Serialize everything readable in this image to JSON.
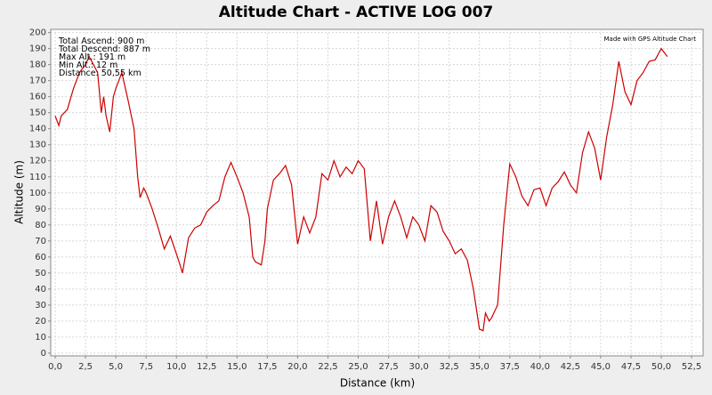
{
  "chart_data": {
    "type": "line",
    "title": "Altitude Chart - ACTIVE LOG 007",
    "x_label": "Distance (km)",
    "y_label": "Altitude (m)",
    "annotations": [
      "Total Ascend: 900 m",
      "Total Descend: 887 m",
      "Max Alt.: 191 m",
      "Min Alt.: 12 m",
      "Distance: 50,55 km"
    ],
    "credit": "Made with GPS Altitude Chart",
    "grid": true,
    "xlim": [
      -0.37,
      53.45
    ],
    "ylim": [
      -1.7,
      202
    ],
    "xticks": [
      {
        "value": 0,
        "label": "0,0"
      },
      {
        "value": 2.5,
        "label": "2,5"
      },
      {
        "value": 5,
        "label": "5,0"
      },
      {
        "value": 7.5,
        "label": "7,5"
      },
      {
        "value": 10,
        "label": "10,0"
      },
      {
        "value": 12.5,
        "label": "12,5"
      },
      {
        "value": 15,
        "label": "15,0"
      },
      {
        "value": 17.5,
        "label": "17,5"
      },
      {
        "value": 20,
        "label": "20,0"
      },
      {
        "value": 22.5,
        "label": "22,5"
      },
      {
        "value": 25,
        "label": "25,0"
      },
      {
        "value": 27.5,
        "label": "27,5"
      },
      {
        "value": 30,
        "label": "30,0"
      },
      {
        "value": 32.5,
        "label": "32,5"
      },
      {
        "value": 35,
        "label": "35,0"
      },
      {
        "value": 37.5,
        "label": "37,5"
      },
      {
        "value": 40,
        "label": "40,0"
      },
      {
        "value": 42.5,
        "label": "42,5"
      },
      {
        "value": 45,
        "label": "45,0"
      },
      {
        "value": 47.5,
        "label": "47,5"
      },
      {
        "value": 50,
        "label": "50,0"
      },
      {
        "value": 52.5,
        "label": "52,5"
      }
    ],
    "yticks": [
      0,
      10,
      20,
      30,
      40,
      50,
      60,
      70,
      80,
      90,
      100,
      110,
      120,
      130,
      140,
      150,
      160,
      170,
      180,
      190,
      200
    ],
    "x": [
      0,
      0.3,
      0.5,
      1,
      1.5,
      2,
      2.5,
      2.8,
      3.5,
      3.8,
      4,
      4.2,
      4.5,
      4.8,
      5,
      5.5,
      6,
      6.5,
      6.8,
      7,
      7.3,
      7.5,
      8,
      8.5,
      9,
      9.5,
      10,
      10.3,
      10.5,
      11,
      11.5,
      12,
      12.5,
      13,
      13.5,
      14,
      14.5,
      15,
      15.5,
      16,
      16.3,
      16.5,
      17,
      17.3,
      17.5,
      18,
      18.5,
      19,
      19.5,
      20,
      20.5,
      21,
      21.5,
      22,
      22.5,
      23,
      23.5,
      24,
      24.5,
      25,
      25.5,
      26,
      26.5,
      27,
      27.5,
      28,
      28.5,
      29,
      29.5,
      30,
      30.5,
      31,
      31.5,
      32,
      32.5,
      33,
      33.5,
      34,
      34.5,
      35,
      35.3,
      35.5,
      35.8,
      36,
      36.5,
      37,
      37.5,
      38,
      38.5,
      39,
      39.5,
      40,
      40.5,
      41,
      41.5,
      42,
      42.5,
      43,
      43.5,
      44,
      44.5,
      45,
      45.5,
      46,
      46.5,
      47,
      47.5,
      48,
      48.5,
      49,
      49.5,
      50,
      50.5
    ],
    "series": [
      {
        "name": "Altitude",
        "color": "#cc0000",
        "values": [
          148,
          142,
          148,
          152,
          165,
          175,
          180,
          185,
          175,
          150,
          160,
          148,
          138,
          160,
          165,
          175,
          158,
          140,
          110,
          97,
          103,
          100,
          90,
          78,
          65,
          73,
          62,
          55,
          50,
          72,
          78,
          80,
          88,
          92,
          95,
          110,
          119,
          110,
          100,
          85,
          60,
          57,
          55,
          70,
          90,
          108,
          112,
          117,
          105,
          68,
          85,
          75,
          85,
          112,
          108,
          120,
          110,
          116,
          112,
          120,
          115,
          70,
          95,
          68,
          85,
          95,
          85,
          72,
          85,
          80,
          70,
          92,
          88,
          76,
          70,
          62,
          65,
          58,
          40,
          15,
          14,
          25,
          20,
          22,
          30,
          80,
          118,
          110,
          98,
          92,
          102,
          103,
          92,
          103,
          107,
          113,
          105,
          100,
          125,
          138,
          128,
          108,
          135,
          155,
          182,
          163,
          155,
          170,
          175,
          182,
          183,
          190,
          185
        ]
      }
    ]
  }
}
